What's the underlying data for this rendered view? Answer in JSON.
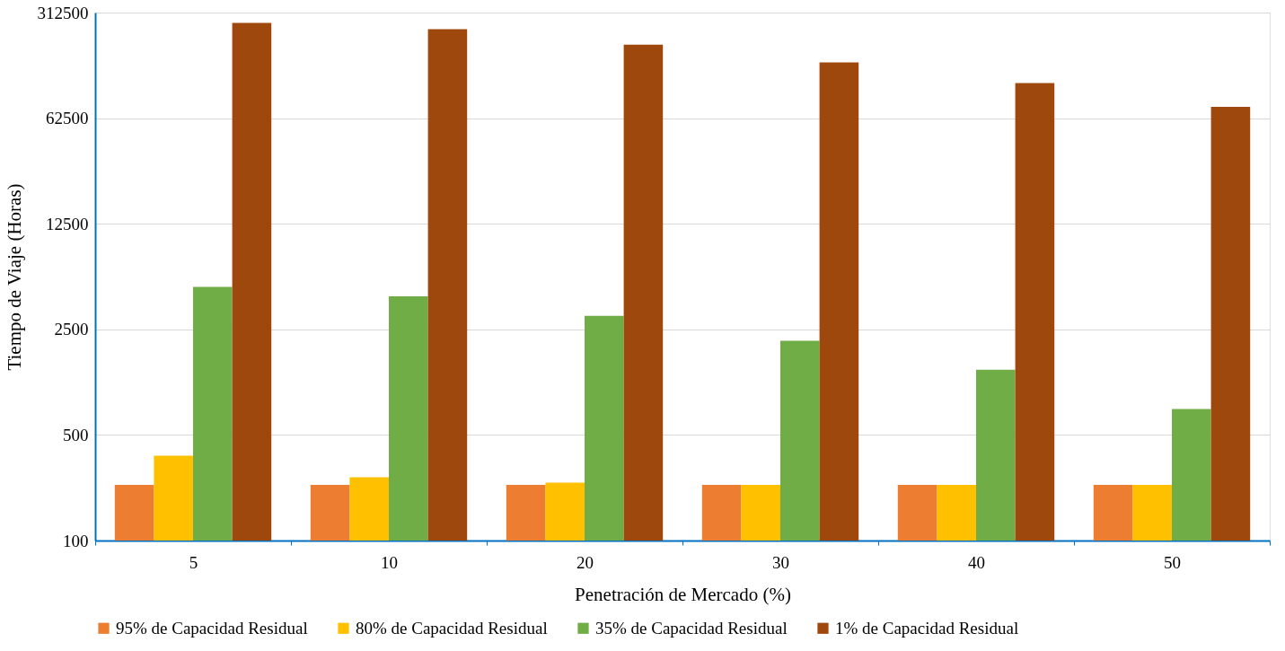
{
  "chart_data": {
    "type": "bar",
    "xlabel": "Penetración de Mercado (%)",
    "ylabel": "Tiempo de Viaje (Horas)",
    "categories": [
      "5",
      "10",
      "20",
      "30",
      "40",
      "50"
    ],
    "series": [
      {
        "name": "95% de Capacidad Residual",
        "color": "#ed7d31",
        "values": [
          234,
          234,
          234,
          234,
          234,
          234
        ]
      },
      {
        "name": "80% de Capacidad Residual",
        "color": "#ffc000",
        "values": [
          365,
          262,
          242,
          234,
          234,
          234
        ]
      },
      {
        "name": "35% de Capacidad Residual",
        "color": "#70ad47",
        "values": [
          4770,
          4140,
          3070,
          2100,
          1350,
          742
        ]
      },
      {
        "name": "1% de Capacidad Residual",
        "color": "#9e480e",
        "values": [
          266600,
          242400,
          191300,
          146300,
          106700,
          74200
        ]
      }
    ],
    "log": "y",
    "ylim": [
      100,
      312500
    ],
    "yticks": [
      100,
      500,
      2500,
      12500,
      62500,
      312500
    ],
    "grid": "y",
    "legend": "bottom"
  }
}
